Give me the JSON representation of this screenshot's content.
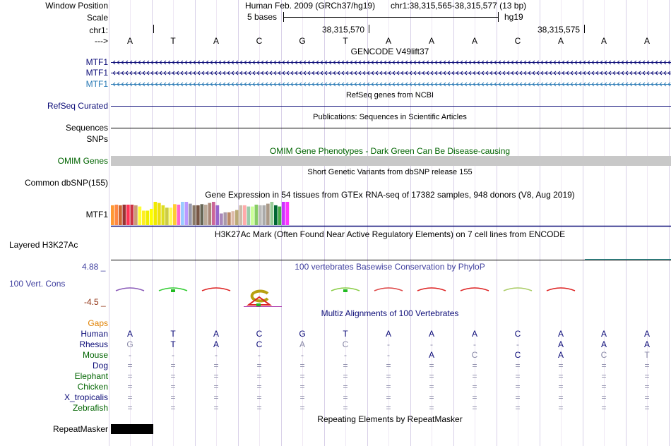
{
  "header": {
    "window_position_label": "Window Position",
    "assembly": "Human Feb. 2009 (GRCh37/hg19)",
    "coords": "chr1:38,315,565-38,315,577 (13 bp)",
    "scale_label": "Scale",
    "scale_text": "5 bases",
    "scale_db": "hg19",
    "chrom_label": "chr1:",
    "tick1": "38,315,570",
    "tick2": "38,315,575",
    "strand_label": "--->"
  },
  "bases": [
    "A",
    "T",
    "A",
    "C",
    "G",
    "T",
    "A",
    "A",
    "A",
    "C",
    "A",
    "A",
    "A"
  ],
  "tracks": {
    "gencode_title": "GENCODE V49lift37",
    "gencode_items": [
      "MTF1",
      "MTF1",
      "MTF1"
    ],
    "gencode_colors": [
      "#0c0c78",
      "#0c0c78",
      "#2a7ab5"
    ],
    "refseq_title": "RefSeq genes from NCBI",
    "refseq_label": "RefSeq Curated",
    "pubs_title": "Publications: Sequences in Scientific Articles",
    "sequences_label": "Sequences",
    "snps_label": "SNPs",
    "omim_title": "OMIM Gene Phenotypes - Dark Green Can Be Disease-causing",
    "omim_label": "OMIM Genes",
    "dbsnp_title": "Short Genetic Variants from dbSNP release 155",
    "dbsnp_label": "Common dbSNP(155)",
    "gtex_title": "Gene Expression in 54 tissues from GTEx RNA-seq of 17382 samples, 948 donors (V8, Aug 2019)",
    "gtex_label": "MTF1",
    "h3k_title": "H3K27Ac Mark (Often Found Near Active Regulatory Elements) on 7 cell lines from ENCODE",
    "h3k_label": "Layered H3K27Ac",
    "cons_title": "100 vertebrates Basewise Conservation by PhyloP",
    "cons_label": "100 Vert. Cons",
    "cons_max": "4.88 _",
    "cons_min": "-4.5 _",
    "multiz_title": "Multiz Alignments of 100 Vertebrates",
    "gaps_label": "Gaps",
    "repeat_title": "Repeating Elements by RepeatMasker",
    "repeat_label": "RepeatMasker"
  },
  "gtex_colors": [
    "#ff9933",
    "#ff8844",
    "#cc6633",
    "#993333",
    "#ff3355",
    "#cc3344",
    "#cc9977",
    "#ffff33",
    "#ffee22",
    "#eeee00",
    "#ffff00",
    "#f0ea00",
    "#eedd11",
    "#dddd22",
    "#cccc44",
    "#ffff55",
    "#ffcc33",
    "#ff66cc",
    "#99ccff",
    "#bb99ff",
    "#9999aa",
    "#887766",
    "#775544",
    "#666655",
    "#bbaa99",
    "#aa8877",
    "#cc6699",
    "#9966cc",
    "#aa88bb",
    "#aa99aa",
    "#bb8866",
    "#ddbbaa",
    "#bbaa77",
    "#ccbbaa",
    "#ffaaaa",
    "#99ccaa",
    "#ccff99",
    "#88cc66",
    "#bbbbbb",
    "#aaaaaa",
    "#aa9988",
    "#99cc99",
    "#006633",
    "#44aa44",
    "#cc33ff",
    "#ff33ff"
  ],
  "gtex_values": [
    0.85,
    0.88,
    0.85,
    0.88,
    0.88,
    0.88,
    0.85,
    0.8,
    0.62,
    0.62,
    0.7,
    1.0,
    0.95,
    0.85,
    0.75,
    0.75,
    0.9,
    0.88,
    1.0,
    1.0,
    0.92,
    0.85,
    0.85,
    0.9,
    0.88,
    0.95,
    1.0,
    0.85,
    0.5,
    0.55,
    0.55,
    0.6,
    0.65,
    0.85,
    0.85,
    0.8,
    0.8,
    0.88,
    0.85,
    0.85,
    0.92,
    1.0,
    0.85,
    0.8,
    1.0,
    1.0
  ],
  "alignment": {
    "species": [
      {
        "name": "Human",
        "color": "#0c0c78",
        "row": [
          "A",
          "T",
          "A",
          "C",
          "G",
          "T",
          "A",
          "A",
          "A",
          "C",
          "A",
          "A",
          "A"
        ],
        "dim": [
          0,
          0,
          0,
          0,
          0,
          0,
          0,
          0,
          0,
          0,
          0,
          0,
          0
        ]
      },
      {
        "name": "Rhesus",
        "color": "#0c0c78",
        "row": [
          "G",
          "T",
          "A",
          "C",
          "A",
          "C",
          "-",
          "-",
          "-",
          "-",
          "A",
          "A",
          "A"
        ],
        "dim": [
          1,
          0,
          0,
          0,
          1,
          1,
          1,
          1,
          1,
          1,
          0,
          0,
          0
        ]
      },
      {
        "name": "Mouse",
        "color": "#006400",
        "row": [
          "-",
          "-",
          "-",
          "-",
          "-",
          "-",
          "-",
          "A",
          "C",
          "C",
          "A",
          "C",
          "T"
        ],
        "dim": [
          1,
          1,
          1,
          1,
          1,
          1,
          1,
          0,
          1,
          0,
          0,
          1,
          1
        ]
      },
      {
        "name": "Dog",
        "color": "#0c0c78",
        "row": [
          "=",
          "=",
          "=",
          "=",
          "=",
          "=",
          "=",
          "=",
          "=",
          "=",
          "=",
          "=",
          "="
        ],
        "dim": [
          1,
          1,
          1,
          1,
          1,
          1,
          1,
          1,
          1,
          1,
          1,
          1,
          1
        ]
      },
      {
        "name": "Elephant",
        "color": "#006400",
        "row": [
          "=",
          "=",
          "=",
          "=",
          "=",
          "=",
          "=",
          "=",
          "=",
          "=",
          "=",
          "=",
          "="
        ],
        "dim": [
          1,
          1,
          1,
          1,
          1,
          1,
          1,
          1,
          1,
          1,
          1,
          1,
          1
        ]
      },
      {
        "name": "Chicken",
        "color": "#006400",
        "row": [
          "=",
          "=",
          "=",
          "=",
          "=",
          "=",
          "=",
          "=",
          "=",
          "=",
          "=",
          "=",
          "="
        ],
        "dim": [
          1,
          1,
          1,
          1,
          1,
          1,
          1,
          1,
          1,
          1,
          1,
          1,
          1
        ]
      },
      {
        "name": "X_tropicalis",
        "color": "#0c0c78",
        "row": [
          "=",
          "=",
          "=",
          "=",
          "=",
          "=",
          "=",
          "=",
          "=",
          "=",
          "=",
          "=",
          "="
        ],
        "dim": [
          1,
          1,
          1,
          1,
          1,
          1,
          1,
          1,
          1,
          1,
          1,
          1,
          1
        ]
      },
      {
        "name": "Zebrafish",
        "color": "#006400",
        "row": [
          "=",
          "=",
          "=",
          "=",
          "=",
          "=",
          "=",
          "=",
          "=",
          "=",
          "=",
          "=",
          "="
        ],
        "dim": [
          1,
          1,
          1,
          1,
          1,
          1,
          1,
          1,
          1,
          1,
          1,
          1,
          1
        ]
      }
    ]
  },
  "colors": {
    "navy": "#0c0c78",
    "dark_green": "#006400",
    "gaps_orange": "#e08000",
    "cons_blue": "#3f3f9f",
    "cons_red": "#8f2f0f",
    "omim_gray": "#c8c8c8",
    "grid_line": "#d8d0e8"
  }
}
